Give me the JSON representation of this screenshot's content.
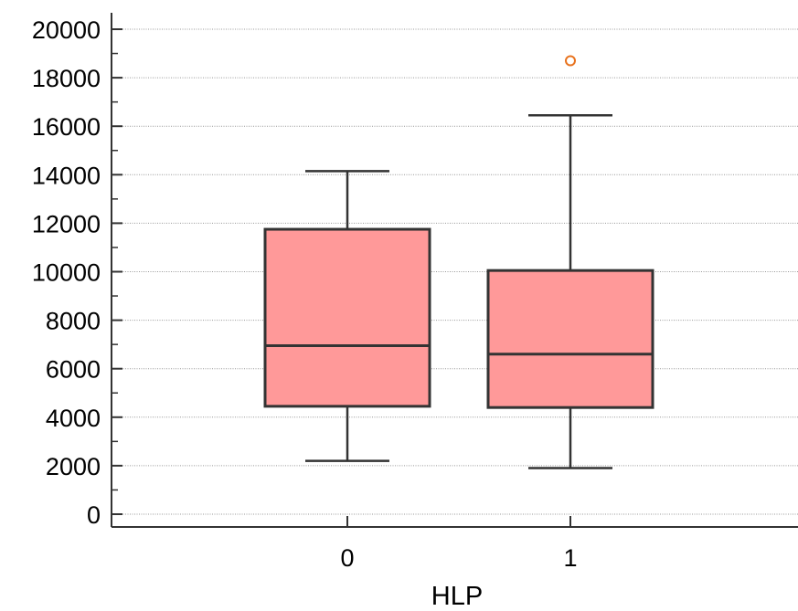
{
  "chart_data": {
    "type": "box",
    "xlabel": "HLP",
    "ylabel": "",
    "ylim": [
      0,
      20000
    ],
    "yticks": [
      "0",
      "2000",
      "4000",
      "6000",
      "8000",
      "10000",
      "12000",
      "14000",
      "16000",
      "18000",
      "20000"
    ],
    "categories": [
      "0",
      "1"
    ],
    "boxes": [
      {
        "category": "0",
        "whisker_low": 2200,
        "q1": 4450,
        "median": 6950,
        "q3": 11750,
        "whisker_high": 14150,
        "outliers": []
      },
      {
        "category": "1",
        "whisker_low": 1900,
        "q1": 4400,
        "median": 6600,
        "q3": 10050,
        "whisker_high": 16450,
        "outliers": [
          18700
        ]
      }
    ],
    "grid": true,
    "colors": {
      "box_fill": "#ff9999",
      "box_stroke": "#333333",
      "outlier": "#e8731f",
      "grid": "#9a9a9a"
    }
  }
}
